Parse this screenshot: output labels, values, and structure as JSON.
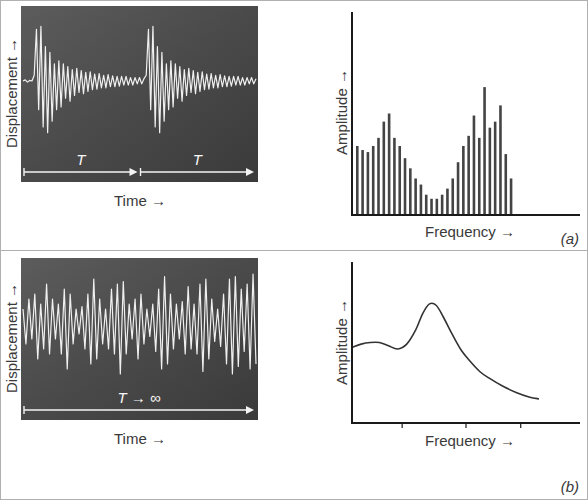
{
  "chart_data": [
    {
      "type": "line",
      "x_label": "Time →",
      "y_label": "Displacement →",
      "annotations": [
        "T",
        "T"
      ],
      "x": [
        0,
        1,
        2,
        3,
        4,
        5,
        6,
        7,
        8,
        9,
        10,
        11,
        12,
        13,
        14,
        15,
        16,
        17,
        18,
        19,
        20,
        21,
        22,
        23,
        24,
        25,
        26,
        27,
        28,
        29,
        30,
        31,
        32,
        33,
        34,
        35,
        36,
        37,
        38,
        39,
        40,
        41,
        42,
        43,
        44,
        45,
        46,
        47,
        48,
        49,
        50,
        51,
        52,
        53,
        54,
        55,
        56,
        57,
        58,
        59,
        60,
        61,
        62,
        63,
        64,
        65,
        66,
        67,
        68,
        69,
        70,
        71,
        72,
        73,
        74,
        75,
        76,
        77,
        78,
        79,
        80,
        81,
        82,
        83,
        84,
        85,
        86,
        87,
        88,
        89,
        90,
        91,
        92,
        93,
        94,
        95,
        96,
        97,
        98,
        99,
        100,
        101,
        102,
        103,
        104
      ],
      "values": [
        0,
        0.02,
        -0.02,
        0.01,
        0,
        0.1,
        0.9,
        -0.5,
        0.95,
        -0.8,
        0.6,
        -0.9,
        0.5,
        -0.7,
        0.3,
        -0.5,
        0.35,
        -0.45,
        0.3,
        -0.3,
        0.25,
        -0.35,
        0.2,
        -0.25,
        0.22,
        -0.2,
        0.18,
        -0.22,
        0.15,
        -0.18,
        0.16,
        -0.15,
        0.12,
        -0.14,
        0.13,
        -0.12,
        0.1,
        -0.12,
        0.11,
        -0.1,
        0.09,
        -0.1,
        0.08,
        -0.09,
        0.08,
        -0.07,
        0.08,
        -0.07,
        0.06,
        -0.07,
        0.06,
        -0.05,
        0.06,
        -0.05,
        0.04,
        0.1,
        0.9,
        -0.5,
        0.95,
        -0.8,
        0.6,
        -0.9,
        0.5,
        -0.7,
        0.3,
        -0.5,
        0.35,
        -0.45,
        0.3,
        -0.3,
        0.25,
        -0.35,
        0.2,
        -0.25,
        0.22,
        -0.2,
        0.18,
        -0.22,
        0.15,
        -0.18,
        0.16,
        -0.15,
        0.12,
        -0.14,
        0.13,
        -0.12,
        0.1,
        -0.12,
        0.11,
        -0.1,
        0.09,
        -0.1,
        0.08,
        -0.09,
        0.08,
        -0.07,
        0.08,
        -0.07,
        0.06,
        -0.07,
        0.06,
        -0.05,
        0.06,
        -0.05,
        0.04
      ],
      "xlim": [
        0,
        104
      ],
      "ylim": [
        -1.2,
        1.2
      ],
      "color": "#f0f0f0",
      "tick_labels": false,
      "grid": false
    },
    {
      "type": "bar",
      "x_label": "Frequency →",
      "y_label": "Amplitude →",
      "annotations": [
        "(a)"
      ],
      "x": [
        1,
        2,
        3,
        4,
        5,
        6,
        7,
        8,
        9,
        10,
        11,
        12,
        13,
        14,
        15,
        16,
        17,
        18,
        19,
        20,
        21,
        22,
        23,
        24,
        25,
        26,
        27,
        28,
        29,
        30
      ],
      "values": [
        34,
        32,
        31,
        34,
        38,
        46,
        50,
        38,
        34,
        28,
        23,
        18,
        15,
        10,
        8,
        8,
        10,
        13,
        18,
        26,
        34,
        39,
        49,
        38,
        63,
        43,
        46,
        54,
        30,
        18
      ],
      "xlim": [
        0,
        43
      ],
      "ylim": [
        0,
        100
      ],
      "color": "#444444",
      "tick_labels": false,
      "grid": false
    },
    {
      "type": "line",
      "x_label": "Time →",
      "y_label": "Displacement →",
      "annotations": [
        "T → ∞"
      ],
      "x": [
        0,
        1,
        2,
        3,
        4,
        5,
        6,
        7,
        8,
        9,
        10,
        11,
        12,
        13,
        14,
        15,
        16,
        17,
        18,
        19,
        20,
        21,
        22,
        23,
        24,
        25,
        26,
        27,
        28,
        29,
        30,
        31,
        32,
        33,
        34,
        35,
        36,
        37,
        38,
        39,
        40,
        41,
        42,
        43,
        44,
        45,
        46,
        47,
        48,
        49,
        50,
        51,
        52,
        53,
        54,
        55,
        56,
        57,
        58,
        59,
        60,
        61,
        62,
        63,
        64,
        65,
        66,
        67,
        68,
        69,
        70,
        71,
        72,
        73,
        74,
        75,
        76,
        77,
        78,
        79
      ],
      "values": [
        0.3,
        -0.4,
        0.5,
        -0.3,
        0.6,
        -0.7,
        0.4,
        -0.5,
        0.8,
        -0.6,
        0.5,
        -0.3,
        0.4,
        -0.6,
        0.7,
        -0.9,
        0.6,
        -0.4,
        0.3,
        -0.2,
        0.35,
        -0.5,
        0.6,
        -0.8,
        0.9,
        -0.7,
        0.5,
        -0.4,
        0.3,
        -0.5,
        0.7,
        -0.6,
        0.8,
        -1.0,
        0.85,
        -0.6,
        0.4,
        -0.3,
        0.5,
        -0.7,
        0.6,
        -0.4,
        0.3,
        -0.25,
        0.4,
        -0.55,
        0.7,
        -0.9,
        0.95,
        -0.8,
        0.6,
        -0.5,
        0.4,
        -0.3,
        0.45,
        -0.6,
        0.75,
        -0.5,
        0.4,
        -0.6,
        0.8,
        -0.95,
        0.9,
        -0.7,
        0.5,
        -0.35,
        0.3,
        -0.45,
        0.6,
        -0.8,
        0.9,
        -1.0,
        0.95,
        -0.85,
        0.7,
        -0.55,
        0.8,
        -0.9,
        1.0,
        -0.8
      ],
      "xlim": [
        0,
        79
      ],
      "ylim": [
        -1.2,
        1.2
      ],
      "color": "#f0f0f0",
      "tick_labels": false,
      "grid": false
    },
    {
      "type": "line",
      "x_label": "Frequency →",
      "y_label": "Amplitude →",
      "annotations": [
        "(b)"
      ],
      "x": [
        0,
        4,
        8,
        12,
        16,
        20,
        24,
        28,
        31,
        34,
        37,
        40,
        44,
        48,
        52,
        56,
        60,
        66,
        72,
        78,
        82
      ],
      "values": [
        47,
        49,
        50,
        50,
        48,
        46,
        49,
        58,
        68,
        74,
        73,
        66,
        55,
        45,
        38,
        32,
        28,
        23,
        19,
        16,
        15
      ],
      "xlim": [
        0,
        100
      ],
      "ylim": [
        0,
        100
      ],
      "xticks": [
        22,
        50,
        74
      ],
      "color": "#333333",
      "tick_labels": false,
      "grid": false
    }
  ]
}
